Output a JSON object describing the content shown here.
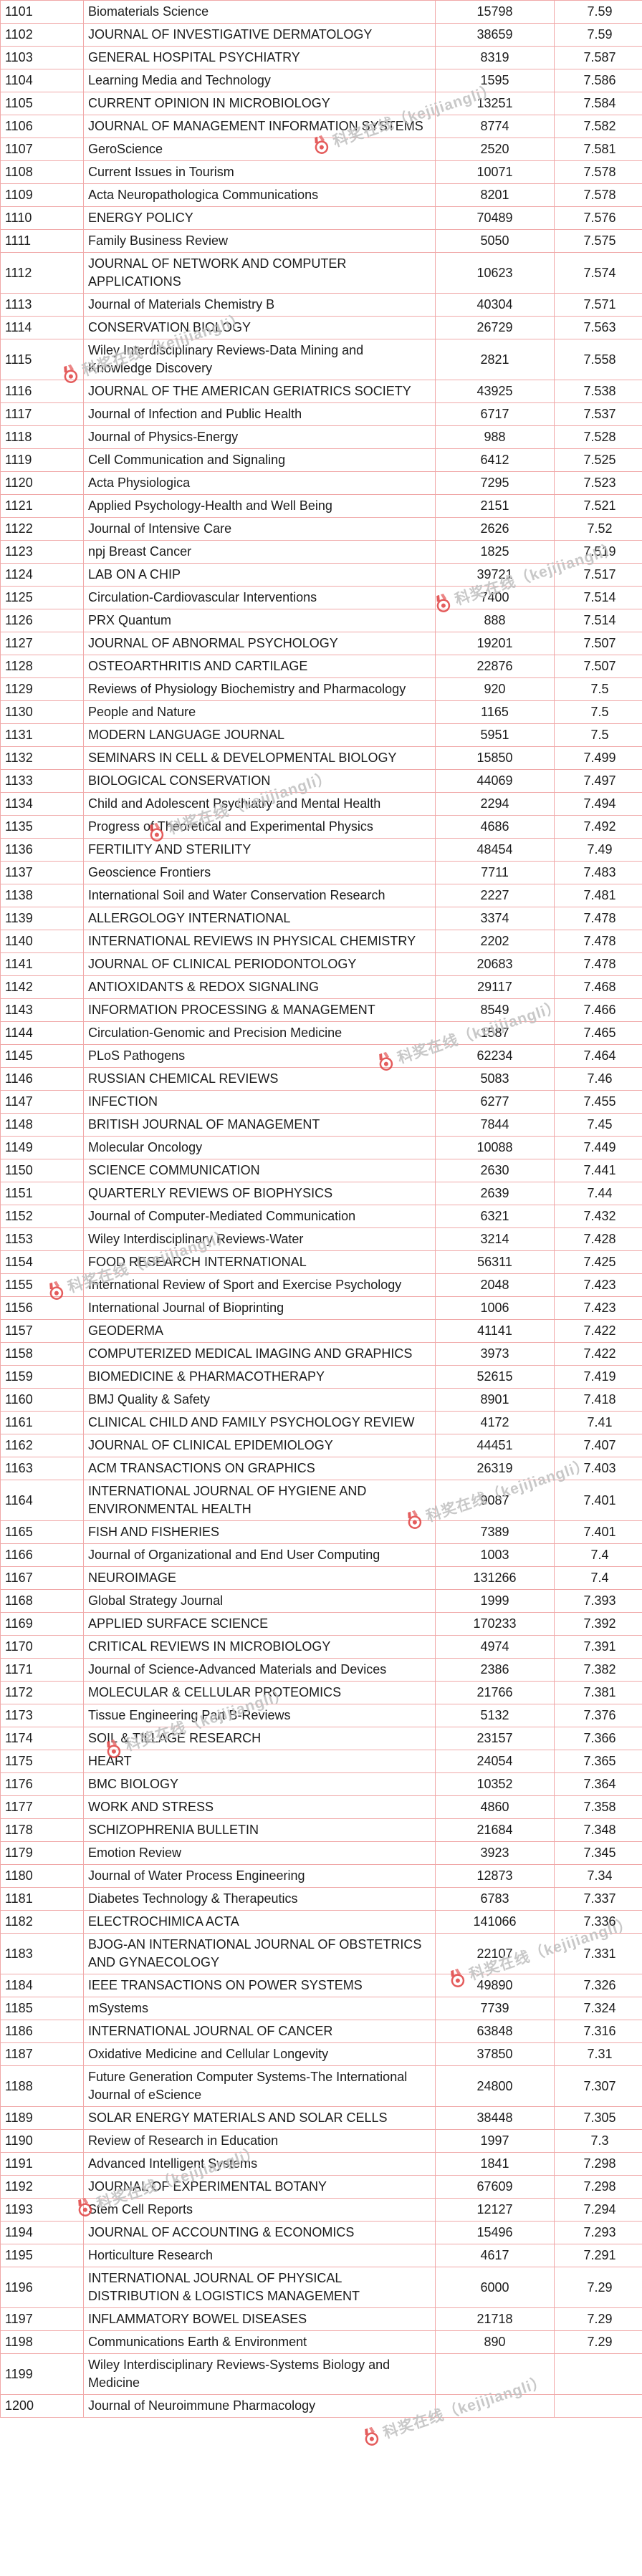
{
  "watermark": {
    "text": "科奖在线（kejijiangli）",
    "icon": "medal-icon"
  },
  "colors": {
    "grid_line": "#f0a8a8",
    "text": "#1c1c1c",
    "watermark_text": "#bfbfbf",
    "watermark_icon": "#e04040"
  },
  "table": {
    "columns": [
      "rank",
      "journal_name",
      "total_cites",
      "impact_factor"
    ],
    "rows": [
      [
        "1101",
        "Biomaterials Science",
        "15798",
        "7.59"
      ],
      [
        "1102",
        "JOURNAL OF INVESTIGATIVE DERMATOLOGY",
        "38659",
        "7.59"
      ],
      [
        "1103",
        "GENERAL HOSPITAL PSYCHIATRY",
        "8319",
        "7.587"
      ],
      [
        "1104",
        "Learning Media and Technology",
        "1595",
        "7.586"
      ],
      [
        "1105",
        "CURRENT OPINION IN MICROBIOLOGY",
        "13251",
        "7.584"
      ],
      [
        "1106",
        "JOURNAL OF MANAGEMENT INFORMATION SYSTEMS",
        "8774",
        "7.582"
      ],
      [
        "1107",
        "GeroScience",
        "2520",
        "7.581"
      ],
      [
        "1108",
        "Current Issues in Tourism",
        "10071",
        "7.578"
      ],
      [
        "1109",
        "Acta Neuropathologica Communications",
        "8201",
        "7.578"
      ],
      [
        "1110",
        "ENERGY POLICY",
        "70489",
        "7.576"
      ],
      [
        "1111",
        "Family Business Review",
        "5050",
        "7.575"
      ],
      [
        "1112",
        "JOURNAL OF NETWORK AND COMPUTER APPLICATIONS",
        "10623",
        "7.574"
      ],
      [
        "1113",
        "Journal of Materials Chemistry B",
        "40304",
        "7.571"
      ],
      [
        "1114",
        "CONSERVATION BIOLOGY",
        "26729",
        "7.563"
      ],
      [
        "1115",
        "Wiley Interdisciplinary Reviews-Data Mining and Knowledge Discovery",
        "2821",
        "7.558"
      ],
      [
        "1116",
        "JOURNAL OF THE AMERICAN GERIATRICS SOCIETY",
        "43925",
        "7.538"
      ],
      [
        "1117",
        "Journal of Infection and Public Health",
        "6717",
        "7.537"
      ],
      [
        "1118",
        "Journal of Physics-Energy",
        "988",
        "7.528"
      ],
      [
        "1119",
        "Cell Communication and Signaling",
        "6412",
        "7.525"
      ],
      [
        "1120",
        "Acta Physiologica",
        "7295",
        "7.523"
      ],
      [
        "1121",
        "Applied Psychology-Health and Well Being",
        "2151",
        "7.521"
      ],
      [
        "1122",
        "Journal of Intensive Care",
        "2626",
        "7.52"
      ],
      [
        "1123",
        "npj Breast Cancer",
        "1825",
        "7.519"
      ],
      [
        "1124",
        "LAB ON A CHIP",
        "39721",
        "7.517"
      ],
      [
        "1125",
        "Circulation-Cardiovascular Interventions",
        "7400",
        "7.514"
      ],
      [
        "1126",
        "PRX Quantum",
        "888",
        "7.514"
      ],
      [
        "1127",
        "JOURNAL OF ABNORMAL PSYCHOLOGY",
        "19201",
        "7.507"
      ],
      [
        "1128",
        "OSTEOARTHRITIS AND CARTILAGE",
        "22876",
        "7.507"
      ],
      [
        "1129",
        "Reviews of Physiology Biochemistry and Pharmacology",
        "920",
        "7.5"
      ],
      [
        "1130",
        "People and Nature",
        "1165",
        "7.5"
      ],
      [
        "1131",
        "MODERN LANGUAGE JOURNAL",
        "5951",
        "7.5"
      ],
      [
        "1132",
        "SEMINARS IN CELL & DEVELOPMENTAL BIOLOGY",
        "15850",
        "7.499"
      ],
      [
        "1133",
        "BIOLOGICAL CONSERVATION",
        "44069",
        "7.497"
      ],
      [
        "1134",
        "Child and Adolescent Psychiatry and Mental Health",
        "2294",
        "7.494"
      ],
      [
        "1135",
        "Progress of Theoretical and Experimental Physics",
        "4686",
        "7.492"
      ],
      [
        "1136",
        "FERTILITY AND STERILITY",
        "48454",
        "7.49"
      ],
      [
        "1137",
        "Geoscience Frontiers",
        "7711",
        "7.483"
      ],
      [
        "1138",
        "International Soil and Water Conservation Research",
        "2227",
        "7.481"
      ],
      [
        "1139",
        "ALLERGOLOGY INTERNATIONAL",
        "3374",
        "7.478"
      ],
      [
        "1140",
        "INTERNATIONAL REVIEWS IN PHYSICAL CHEMISTRY",
        "2202",
        "7.478"
      ],
      [
        "1141",
        "JOURNAL OF CLINICAL PERIODONTOLOGY",
        "20683",
        "7.478"
      ],
      [
        "1142",
        "ANTIOXIDANTS & REDOX SIGNALING",
        "29117",
        "7.468"
      ],
      [
        "1143",
        "INFORMATION PROCESSING & MANAGEMENT",
        "8549",
        "7.466"
      ],
      [
        "1144",
        "Circulation-Genomic and Precision Medicine",
        "1587",
        "7.465"
      ],
      [
        "1145",
        "PLoS Pathogens",
        "62234",
        "7.464"
      ],
      [
        "1146",
        "RUSSIAN CHEMICAL REVIEWS",
        "5083",
        "7.46"
      ],
      [
        "1147",
        "INFECTION",
        "6277",
        "7.455"
      ],
      [
        "1148",
        "BRITISH JOURNAL OF MANAGEMENT",
        "7844",
        "7.45"
      ],
      [
        "1149",
        "Molecular Oncology",
        "10088",
        "7.449"
      ],
      [
        "1150",
        "SCIENCE COMMUNICATION",
        "2630",
        "7.441"
      ],
      [
        "1151",
        "QUARTERLY REVIEWS OF BIOPHYSICS",
        "2639",
        "7.44"
      ],
      [
        "1152",
        "Journal of Computer-Mediated Communication",
        "6321",
        "7.432"
      ],
      [
        "1153",
        "Wiley Interdisciplinary Reviews-Water",
        "3214",
        "7.428"
      ],
      [
        "1154",
        "FOOD RESEARCH INTERNATIONAL",
        "56311",
        "7.425"
      ],
      [
        "1155",
        "International Review of Sport and Exercise Psychology",
        "2048",
        "7.423"
      ],
      [
        "1156",
        "International Journal of Bioprinting",
        "1006",
        "7.423"
      ],
      [
        "1157",
        "GEODERMA",
        "41141",
        "7.422"
      ],
      [
        "1158",
        "COMPUTERIZED MEDICAL IMAGING AND GRAPHICS",
        "3973",
        "7.422"
      ],
      [
        "1159",
        "BIOMEDICINE & PHARMACOTHERAPY",
        "52615",
        "7.419"
      ],
      [
        "1160",
        "BMJ Quality & Safety",
        "8901",
        "7.418"
      ],
      [
        "1161",
        "CLINICAL CHILD AND FAMILY PSYCHOLOGY REVIEW",
        "4172",
        "7.41"
      ],
      [
        "1162",
        "JOURNAL OF CLINICAL EPIDEMIOLOGY",
        "44451",
        "7.407"
      ],
      [
        "1163",
        "ACM TRANSACTIONS ON GRAPHICS",
        "26319",
        "7.403"
      ],
      [
        "1164",
        "INTERNATIONAL JOURNAL OF HYGIENE AND ENVIRONMENTAL HEALTH",
        "9087",
        "7.401"
      ],
      [
        "1165",
        "FISH AND FISHERIES",
        "7389",
        "7.401"
      ],
      [
        "1166",
        "Journal of Organizational and End User Computing",
        "1003",
        "7.4"
      ],
      [
        "1167",
        "NEUROIMAGE",
        "131266",
        "7.4"
      ],
      [
        "1168",
        "Global Strategy Journal",
        "1999",
        "7.393"
      ],
      [
        "1169",
        "APPLIED SURFACE SCIENCE",
        "170233",
        "7.392"
      ],
      [
        "1170",
        "CRITICAL REVIEWS IN MICROBIOLOGY",
        "4974",
        "7.391"
      ],
      [
        "1171",
        "Journal of Science-Advanced Materials and Devices",
        "2386",
        "7.382"
      ],
      [
        "1172",
        "MOLECULAR & CELLULAR PROTEOMICS",
        "21766",
        "7.381"
      ],
      [
        "1173",
        "Tissue Engineering Part B-Reviews",
        "5132",
        "7.376"
      ],
      [
        "1174",
        "SOIL & TILLAGE RESEARCH",
        "23157",
        "7.366"
      ],
      [
        "1175",
        "HEART",
        "24054",
        "7.365"
      ],
      [
        "1176",
        "BMC BIOLOGY",
        "10352",
        "7.364"
      ],
      [
        "1177",
        "WORK AND STRESS",
        "4860",
        "7.358"
      ],
      [
        "1178",
        "SCHIZOPHRENIA BULLETIN",
        "21684",
        "7.348"
      ],
      [
        "1179",
        "Emotion Review",
        "3923",
        "7.345"
      ],
      [
        "1180",
        "Journal of Water Process Engineering",
        "12873",
        "7.34"
      ],
      [
        "1181",
        "Diabetes Technology & Therapeutics",
        "6783",
        "7.337"
      ],
      [
        "1182",
        "ELECTROCHIMICA ACTA",
        "141066",
        "7.336"
      ],
      [
        "1183",
        "BJOG-AN INTERNATIONAL JOURNAL OF OBSTETRICS AND GYNAECOLOGY",
        "22107",
        "7.331"
      ],
      [
        "1184",
        "IEEE TRANSACTIONS ON POWER SYSTEMS",
        "49890",
        "7.326"
      ],
      [
        "1185",
        "mSystems",
        "7739",
        "7.324"
      ],
      [
        "1186",
        "INTERNATIONAL JOURNAL OF CANCER",
        "63848",
        "7.316"
      ],
      [
        "1187",
        "Oxidative Medicine and Cellular Longevity",
        "37850",
        "7.31"
      ],
      [
        "1188",
        "Future Generation Computer Systems-The International Journal of eScience",
        "24800",
        "7.307"
      ],
      [
        "1189",
        "SOLAR ENERGY MATERIALS AND SOLAR CELLS",
        "38448",
        "7.305"
      ],
      [
        "1190",
        "Review of Research in Education",
        "1997",
        "7.3"
      ],
      [
        "1191",
        "Advanced Intelligent Systems",
        "1841",
        "7.298"
      ],
      [
        "1192",
        "JOURNAL OF EXPERIMENTAL BOTANY",
        "67609",
        "7.298"
      ],
      [
        "1193",
        "Stem Cell Reports",
        "12127",
        "7.294"
      ],
      [
        "1194",
        "JOURNAL OF ACCOUNTING & ECONOMICS",
        "15496",
        "7.293"
      ],
      [
        "1195",
        "Horticulture Research",
        "4617",
        "7.291"
      ],
      [
        "1196",
        "INTERNATIONAL JOURNAL OF PHYSICAL DISTRIBUTION & LOGISTICS MANAGEMENT",
        "6000",
        "7.29"
      ],
      [
        "1197",
        "INFLAMMATORY BOWEL DISEASES",
        "21718",
        "7.29"
      ],
      [
        "1198",
        "Communications Earth & Environment",
        "890",
        "7.29"
      ],
      [
        "1199",
        "Wiley Interdisciplinary Reviews-Systems Biology and Medicine",
        "",
        ""
      ],
      [
        "1200",
        "Journal of Neuroimmune Pharmacology",
        "",
        ""
      ]
    ]
  }
}
